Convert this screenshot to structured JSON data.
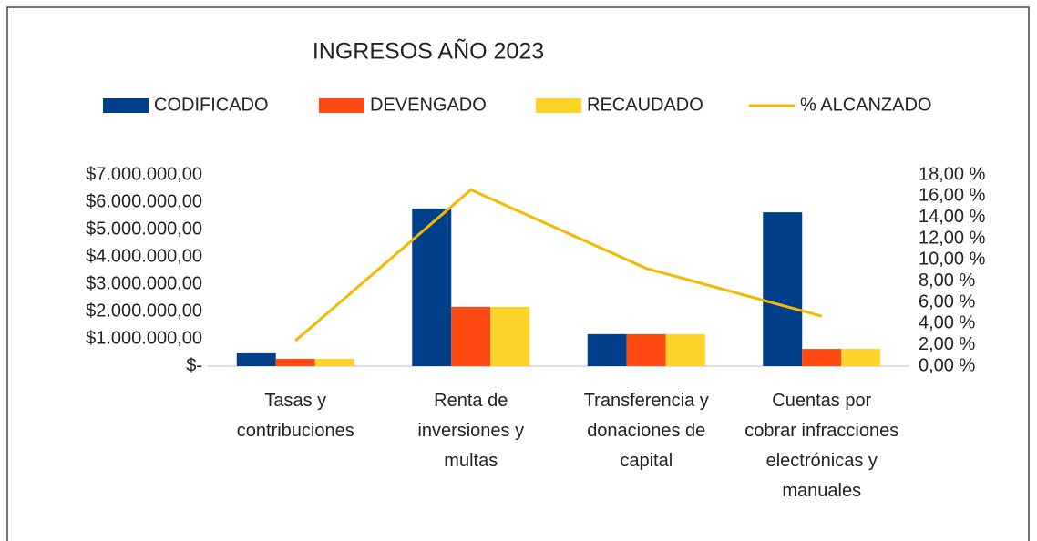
{
  "chart_data": {
    "type": "bar",
    "title": "INGRESOS AÑO 2023",
    "categories": [
      "Tasas y contribuciones",
      "Renta de inversiones y multas",
      "Transferencia y donaciones de capital",
      "Cuentas por cobrar infracciones electrónicas y manuales"
    ],
    "series": [
      {
        "name": "CODIFICADO",
        "color": "#003f8a",
        "values": [
          470000,
          5770000,
          1170000,
          5630000
        ]
      },
      {
        "name": "DEVENGADO",
        "color": "#ff4b12",
        "values": [
          270000,
          2170000,
          1170000,
          630000
        ]
      },
      {
        "name": "RECAUDADO",
        "color": "#ffd42a",
        "values": [
          270000,
          2170000,
          1170000,
          630000
        ]
      },
      {
        "name": "% ALCANZADO",
        "color": "#f5b800",
        "type": "line",
        "axis": "y2",
        "values": [
          2.4,
          16.6,
          9.2,
          4.7
        ]
      }
    ],
    "ylim": [
      0,
      7000000
    ],
    "yticks": [
      {
        "value": 0,
        "label": "$-"
      },
      {
        "value": 1000000,
        "label": "$1.000.000,00"
      },
      {
        "value": 2000000,
        "label": "$2.000.000,00"
      },
      {
        "value": 3000000,
        "label": "$3.000.000,00"
      },
      {
        "value": 4000000,
        "label": "$4.000.000,00"
      },
      {
        "value": 5000000,
        "label": "$5.000.000,00"
      },
      {
        "value": 6000000,
        "label": "$6.000.000,00"
      },
      {
        "value": 7000000,
        "label": "$7.000.000,00"
      }
    ],
    "y2lim": [
      0,
      18
    ],
    "y2ticks": [
      {
        "value": 0,
        "label": "0,00 %"
      },
      {
        "value": 2,
        "label": "2,00 %"
      },
      {
        "value": 4,
        "label": "4,00 %"
      },
      {
        "value": 6,
        "label": "6,00 %"
      },
      {
        "value": 8,
        "label": "8,00 %"
      },
      {
        "value": 10,
        "label": "10,00 %"
      },
      {
        "value": 12,
        "label": "12,00 %"
      },
      {
        "value": 14,
        "label": "14,00 %"
      },
      {
        "value": 16,
        "label": "16,00 %"
      },
      {
        "value": 18,
        "label": "18,00 %"
      }
    ],
    "legend": "top",
    "grid": false
  }
}
